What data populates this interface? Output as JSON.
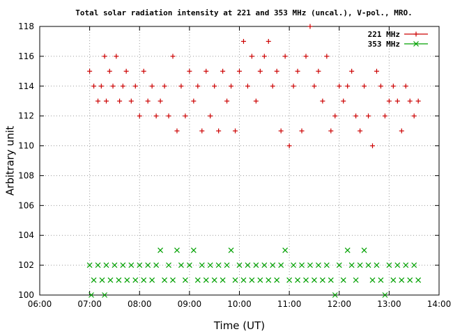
{
  "chart_data": {
    "type": "scatter",
    "title": "Total solar radiation intensity at 221 and 353 MHz (uncal.), V-pol., MRO.",
    "xlabel": "Time (UT)",
    "ylabel": "Arbitrary unit",
    "xlim": [
      "06:00",
      "14:00"
    ],
    "ylim": [
      100,
      118
    ],
    "x_ticks": [
      "06:00",
      "07:00",
      "08:00",
      "09:00",
      "10:00",
      "11:00",
      "12:00",
      "13:00",
      "14:00"
    ],
    "y_ticks": [
      100,
      102,
      104,
      106,
      108,
      110,
      112,
      114,
      116,
      118
    ],
    "grid": true,
    "legend_position": "top-right",
    "colors": {
      "221 MHz": "#cc0000",
      "353 MHz": "#00a000",
      "grid": "#999999"
    },
    "series": [
      {
        "name": "221 MHz",
        "marker": "plus",
        "points": [
          [
            "07:00",
            115
          ],
          [
            "07:05",
            114
          ],
          [
            "07:10",
            113
          ],
          [
            "07:14",
            114
          ],
          [
            "07:18",
            116
          ],
          [
            "07:20",
            113
          ],
          [
            "07:24",
            115
          ],
          [
            "07:28",
            114
          ],
          [
            "07:32",
            116
          ],
          [
            "07:36",
            113
          ],
          [
            "07:40",
            114
          ],
          [
            "07:44",
            115
          ],
          [
            "07:50",
            113
          ],
          [
            "07:55",
            114
          ],
          [
            "08:00",
            112
          ],
          [
            "08:05",
            115
          ],
          [
            "08:10",
            113
          ],
          [
            "08:15",
            114
          ],
          [
            "08:20",
            112
          ],
          [
            "08:25",
            113
          ],
          [
            "08:30",
            114
          ],
          [
            "08:35",
            112
          ],
          [
            "08:40",
            116
          ],
          [
            "08:45",
            111
          ],
          [
            "08:50",
            114
          ],
          [
            "08:55",
            112
          ],
          [
            "09:00",
            115
          ],
          [
            "09:05",
            113
          ],
          [
            "09:10",
            114
          ],
          [
            "09:15",
            111
          ],
          [
            "09:20",
            115
          ],
          [
            "09:25",
            112
          ],
          [
            "09:30",
            114
          ],
          [
            "09:35",
            111
          ],
          [
            "09:40",
            115
          ],
          [
            "09:45",
            113
          ],
          [
            "09:50",
            114
          ],
          [
            "09:55",
            111
          ],
          [
            "10:00",
            115
          ],
          [
            "10:05",
            117
          ],
          [
            "10:10",
            114
          ],
          [
            "10:15",
            116
          ],
          [
            "10:20",
            113
          ],
          [
            "10:25",
            115
          ],
          [
            "10:30",
            116
          ],
          [
            "10:35",
            117
          ],
          [
            "10:40",
            114
          ],
          [
            "10:45",
            115
          ],
          [
            "10:50",
            111
          ],
          [
            "10:55",
            116
          ],
          [
            "11:00",
            110
          ],
          [
            "11:05",
            114
          ],
          [
            "11:10",
            115
          ],
          [
            "11:15",
            111
          ],
          [
            "11:20",
            116
          ],
          [
            "11:25",
            118
          ],
          [
            "11:30",
            114
          ],
          [
            "11:35",
            115
          ],
          [
            "11:40",
            113
          ],
          [
            "11:45",
            116
          ],
          [
            "11:50",
            111
          ],
          [
            "11:55",
            112
          ],
          [
            "12:00",
            114
          ],
          [
            "12:05",
            113
          ],
          [
            "12:10",
            114
          ],
          [
            "12:15",
            115
          ],
          [
            "12:20",
            112
          ],
          [
            "12:25",
            111
          ],
          [
            "12:30",
            114
          ],
          [
            "12:35",
            112
          ],
          [
            "12:40",
            110
          ],
          [
            "12:45",
            115
          ],
          [
            "12:50",
            114
          ],
          [
            "12:55",
            112
          ],
          [
            "13:00",
            113
          ],
          [
            "13:05",
            114
          ],
          [
            "13:10",
            113
          ],
          [
            "13:15",
            111
          ],
          [
            "13:20",
            114
          ],
          [
            "13:25",
            113
          ],
          [
            "13:30",
            112
          ],
          [
            "13:35",
            113
          ]
        ]
      },
      {
        "name": "353 MHz",
        "marker": "cross",
        "points": [
          [
            "07:00",
            102
          ],
          [
            "07:02",
            100
          ],
          [
            "07:05",
            101
          ],
          [
            "07:10",
            102
          ],
          [
            "07:15",
            101
          ],
          [
            "07:18",
            100
          ],
          [
            "07:20",
            102
          ],
          [
            "07:25",
            101
          ],
          [
            "07:30",
            102
          ],
          [
            "07:35",
            101
          ],
          [
            "07:40",
            102
          ],
          [
            "07:45",
            101
          ],
          [
            "07:50",
            102
          ],
          [
            "07:55",
            101
          ],
          [
            "08:00",
            102
          ],
          [
            "08:05",
            101
          ],
          [
            "08:10",
            102
          ],
          [
            "08:15",
            101
          ],
          [
            "08:20",
            102
          ],
          [
            "08:25",
            103
          ],
          [
            "08:30",
            101
          ],
          [
            "08:35",
            102
          ],
          [
            "08:40",
            101
          ],
          [
            "08:45",
            103
          ],
          [
            "08:50",
            102
          ],
          [
            "08:55",
            101
          ],
          [
            "09:00",
            102
          ],
          [
            "09:05",
            103
          ],
          [
            "09:10",
            101
          ],
          [
            "09:15",
            102
          ],
          [
            "09:20",
            101
          ],
          [
            "09:25",
            102
          ],
          [
            "09:30",
            101
          ],
          [
            "09:35",
            102
          ],
          [
            "09:40",
            101
          ],
          [
            "09:45",
            102
          ],
          [
            "09:50",
            103
          ],
          [
            "09:55",
            101
          ],
          [
            "10:00",
            102
          ],
          [
            "10:05",
            101
          ],
          [
            "10:10",
            102
          ],
          [
            "10:15",
            101
          ],
          [
            "10:20",
            102
          ],
          [
            "10:25",
            101
          ],
          [
            "10:30",
            102
          ],
          [
            "10:35",
            101
          ],
          [
            "10:40",
            102
          ],
          [
            "10:45",
            101
          ],
          [
            "10:50",
            102
          ],
          [
            "10:55",
            103
          ],
          [
            "11:00",
            101
          ],
          [
            "11:05",
            102
          ],
          [
            "11:10",
            101
          ],
          [
            "11:15",
            102
          ],
          [
            "11:20",
            101
          ],
          [
            "11:25",
            102
          ],
          [
            "11:30",
            101
          ],
          [
            "11:35",
            102
          ],
          [
            "11:40",
            101
          ],
          [
            "11:45",
            102
          ],
          [
            "11:50",
            101
          ],
          [
            "11:55",
            100
          ],
          [
            "12:00",
            102
          ],
          [
            "12:05",
            101
          ],
          [
            "12:10",
            103
          ],
          [
            "12:15",
            102
          ],
          [
            "12:20",
            101
          ],
          [
            "12:25",
            102
          ],
          [
            "12:30",
            103
          ],
          [
            "12:35",
            102
          ],
          [
            "12:40",
            101
          ],
          [
            "12:45",
            102
          ],
          [
            "12:50",
            101
          ],
          [
            "12:55",
            100
          ],
          [
            "13:00",
            102
          ],
          [
            "13:05",
            101
          ],
          [
            "13:10",
            102
          ],
          [
            "13:15",
            101
          ],
          [
            "13:20",
            102
          ],
          [
            "13:25",
            101
          ],
          [
            "13:30",
            102
          ],
          [
            "13:35",
            101
          ]
        ]
      }
    ]
  }
}
